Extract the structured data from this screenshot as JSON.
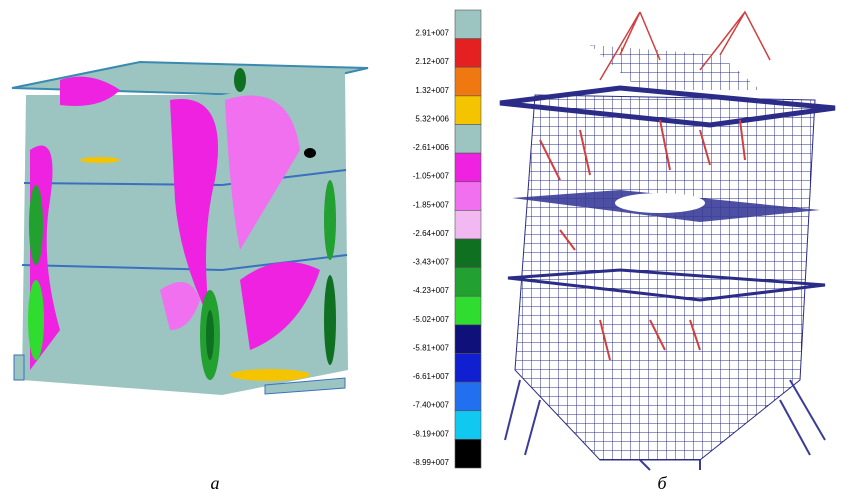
{
  "figure": {
    "legend": [
      {
        "label": "2.91+007",
        "color": "#9cc4c0"
      },
      {
        "label": "2.12+007",
        "color": "#e42020"
      },
      {
        "label": "1.32+007",
        "color": "#f07810"
      },
      {
        "label": "5.32+006",
        "color": "#f5c400"
      },
      {
        "label": "-2.61+006",
        "color": "#9cc4c0"
      },
      {
        "label": "-1.05+007",
        "color": "#ee22e0"
      },
      {
        "label": "-1.85+007",
        "color": "#f070f0"
      },
      {
        "label": "-2.64+007",
        "color": "#f2b8f2"
      },
      {
        "label": "-3.43+007",
        "color": "#0f7022"
      },
      {
        "label": "-4.23+007",
        "color": "#22a030"
      },
      {
        "label": "-5.02+007",
        "color": "#30dc30"
      },
      {
        "label": "-5.81+007",
        "color": "#10107a"
      },
      {
        "label": "-6.61+007",
        "color": "#1020d0"
      },
      {
        "label": "-7.40+007",
        "color": "#2070f0"
      },
      {
        "label": "-8.19+007",
        "color": "#10c8f0"
      },
      {
        "label": "-8.99+007",
        "color": "#000000"
      }
    ],
    "captions": [
      "а",
      "б"
    ]
  }
}
